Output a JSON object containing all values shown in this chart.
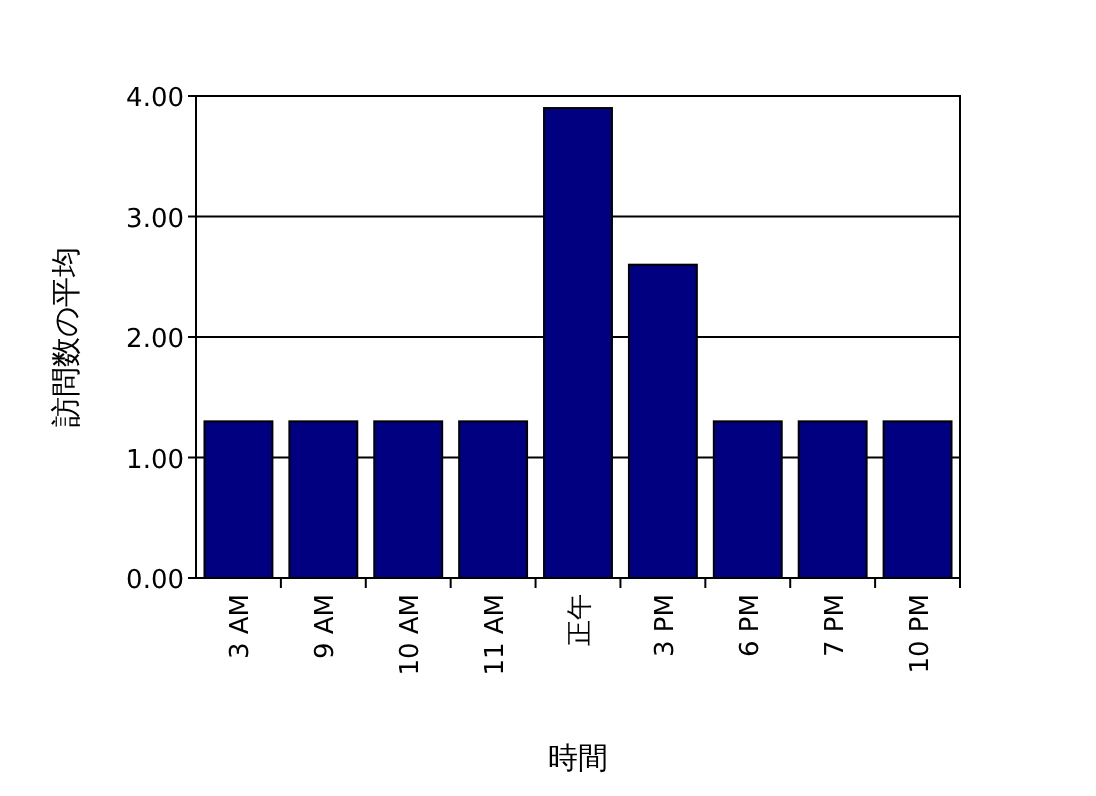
{
  "chart_data": {
    "type": "bar",
    "xlabel": "時間",
    "ylabel": "訪問数の平均",
    "categories": [
      "3 AM",
      "9 AM",
      "10 AM",
      "11 AM",
      "正午",
      "3 PM",
      "6 PM",
      "7 PM",
      "10 PM"
    ],
    "values": [
      1.3,
      1.3,
      1.3,
      1.3,
      3.9,
      2.6,
      1.3,
      1.3,
      1.3
    ],
    "color": "#000080",
    "ylim": [
      0,
      4
    ],
    "yticks": [
      {
        "value": 0,
        "label": "0.00"
      },
      {
        "value": 1,
        "label": "1.00"
      },
      {
        "value": 2,
        "label": "2.00"
      },
      {
        "value": 3,
        "label": "3.00"
      },
      {
        "value": 4,
        "label": "4.00"
      }
    ],
    "grid": "y"
  }
}
